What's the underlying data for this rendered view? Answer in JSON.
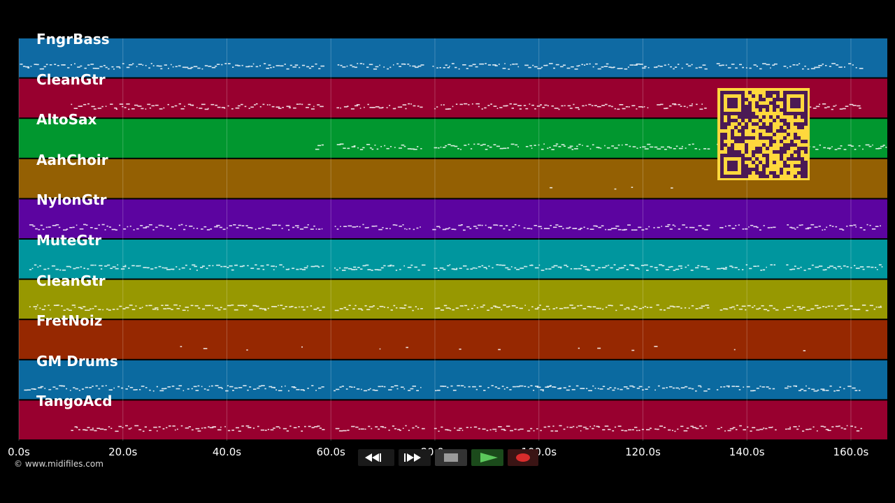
{
  "tracks": [
    {
      "name": "FngrBass",
      "color": "#0f6aa3",
      "note_range": [
        0.2,
        162
      ]
    },
    {
      "name": "CleanGtr",
      "color": "#98002f",
      "note_range": [
        10,
        162
      ]
    },
    {
      "name": "AltoSax",
      "color": "#01972f",
      "note_range": [
        57,
        167
      ]
    },
    {
      "name": "AahChoir",
      "color": "#946003",
      "note_range": [
        96,
        130
      ]
    },
    {
      "name": "NylonGtr",
      "color": "#5c04a0",
      "note_range": [
        2,
        166
      ]
    },
    {
      "name": "MuteGtr",
      "color": "#00969e",
      "note_range": [
        2,
        166
      ]
    },
    {
      "name": "CleanGtr",
      "color": "#979801",
      "note_range": [
        2,
        166
      ]
    },
    {
      "name": "FretNoiz",
      "color": "#962801",
      "note_range": [
        31,
        166
      ]
    },
    {
      "name": "GM Drums",
      "color": "#0b6aa0",
      "note_range": [
        1,
        162
      ]
    },
    {
      "name": "TangoAcd",
      "color": "#98002f",
      "note_range": [
        10,
        162
      ]
    }
  ],
  "timeline": {
    "range": [
      0,
      167
    ],
    "ticks": [
      0,
      20,
      40,
      60,
      80,
      100,
      120,
      140,
      160
    ],
    "tick_labels": [
      "0.0s",
      "20.0s",
      "40.0s",
      "60.0s",
      "80.0s",
      "100.0s",
      "120.0s",
      "140.0s",
      "160.0s"
    ]
  },
  "gaps": [
    [
      58.5,
      60.5
    ],
    [
      77.5,
      79.5
    ],
    [
      96.5,
      97
    ],
    [
      121.5,
      122
    ],
    [
      132.5,
      134
    ],
    [
      145.5,
      147
    ]
  ],
  "copyright": "© www.midifiles.com",
  "transport": {
    "buttons": [
      {
        "name": "rewind",
        "glyph": "◀◀"
      },
      {
        "name": "fast-forward",
        "glyph": "▶▶"
      },
      {
        "name": "stop"
      },
      {
        "name": "play"
      },
      {
        "name": "record"
      }
    ]
  },
  "qr": {
    "color": "#ffd83d",
    "module_color": "#4b1a55"
  }
}
